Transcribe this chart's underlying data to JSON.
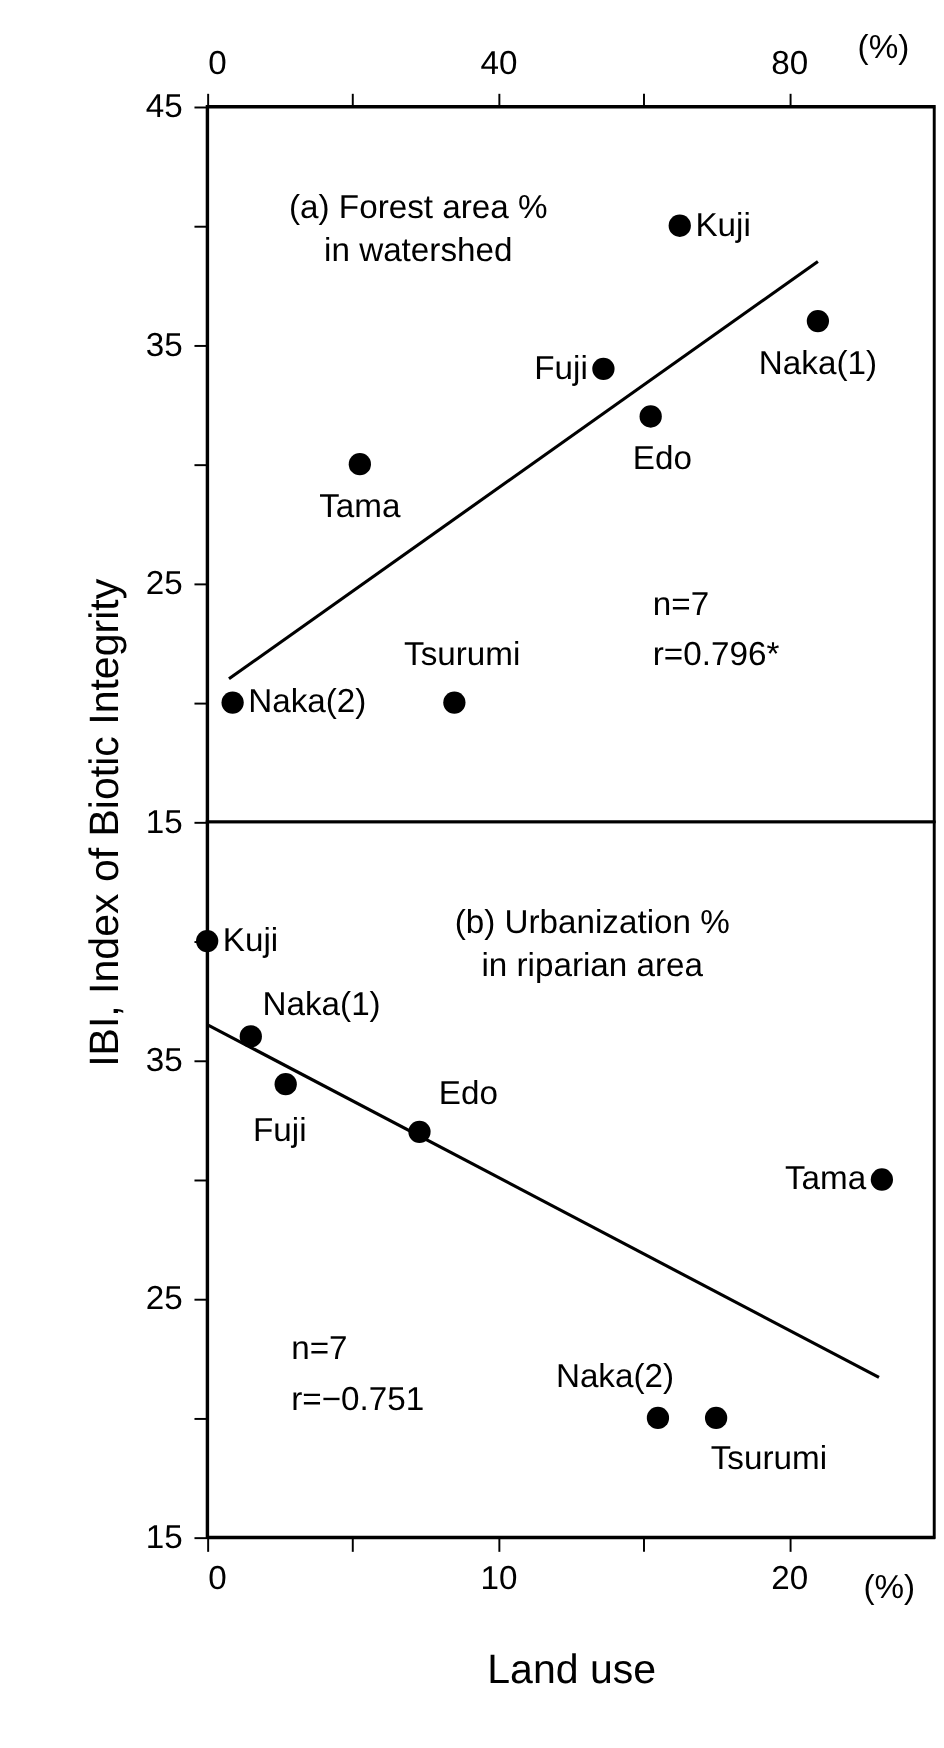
{
  "chart_data": [
    {
      "type": "scatter",
      "ylabel": "IBI, Index of Biotic Integrity",
      "xlim": [
        0,
        100
      ],
      "xticks": [
        0,
        {
          "value": 20,
          "label": null
        },
        40,
        {
          "value": 60,
          "label": null
        },
        80
      ],
      "ylim": [
        15,
        45
      ],
      "yticks": [
        15,
        {
          "value": 20,
          "label": null
        },
        25,
        {
          "value": 30,
          "label": null
        },
        35,
        {
          "value": 40,
          "label": null
        },
        45
      ],
      "series": [
        {
          "color": "#000000",
          "marker": "circle",
          "x": [
            65,
            84,
            54.5,
            61,
            21,
            3.5,
            34
          ],
          "values": [
            40,
            36,
            34,
            32,
            30,
            20,
            20
          ]
        },
        {
          "type": "line",
          "color": "#000000",
          "marker": "none",
          "line_style": "solid",
          "x": [
            3,
            84
          ],
          "values": [
            21,
            38.5
          ]
        }
      ],
      "annotations": [
        "(%)",
        "(a) Forest area %\nin watershed",
        "n=7",
        "r=0.796*",
        {
          "text": "Kuji",
          "x": 65,
          "y": 40
        },
        {
          "text": "Naka(1)",
          "x": 84,
          "y": 36
        },
        {
          "text": "Fuji",
          "x": 54.5,
          "y": 34
        },
        {
          "text": "Edo",
          "x": 61,
          "y": 32
        },
        {
          "text": "Tama",
          "x": 21,
          "y": 30
        },
        {
          "text": "Naka(2)",
          "x": 3.5,
          "y": 20
        },
        {
          "text": "Tsurumi",
          "x": 34,
          "y": 20
        }
      ]
    },
    {
      "type": "scatter",
      "xlabel": "Land use",
      "xlim": [
        0,
        25
      ],
      "xticks": [
        0,
        {
          "value": 5,
          "label": null
        },
        10,
        {
          "value": 15,
          "label": null
        },
        20
      ],
      "ylim": [
        15,
        45
      ],
      "yticks": [
        15,
        {
          "value": 20,
          "label": null
        },
        25,
        {
          "value": 30,
          "label": null
        },
        35,
        {
          "value": 40,
          "label": null
        }
      ],
      "series": [
        {
          "color": "#000000",
          "marker": "circle",
          "x": [
            0,
            1.5,
            2.7,
            7.3,
            23.2,
            15.5,
            17.5
          ],
          "values": [
            40,
            36,
            34,
            32,
            30,
            20,
            20
          ]
        },
        {
          "type": "line",
          "color": "#000000",
          "marker": "none",
          "line_style": "solid",
          "x": [
            0,
            23.1
          ],
          "values": [
            36.5,
            21.7
          ]
        }
      ],
      "annotations": [
        "(%)",
        "(b) Urbanization %\nin riparian area",
        "n=7",
        "r=−0.751",
        {
          "text": "Kuji",
          "x": 0,
          "y": 40
        },
        {
          "text": "Naka(1)",
          "x": 1.5,
          "y": 36
        },
        {
          "text": "Fuji",
          "x": 2.7,
          "y": 34
        },
        {
          "text": "Edo",
          "x": 7.3,
          "y": 32
        },
        {
          "text": "Tama",
          "x": 23.2,
          "y": 30
        },
        {
          "text": "Naka(2)",
          "x": 15.5,
          "y": 20
        },
        {
          "text": "Tsurumi",
          "x": 17.5,
          "y": 20
        }
      ]
    }
  ]
}
